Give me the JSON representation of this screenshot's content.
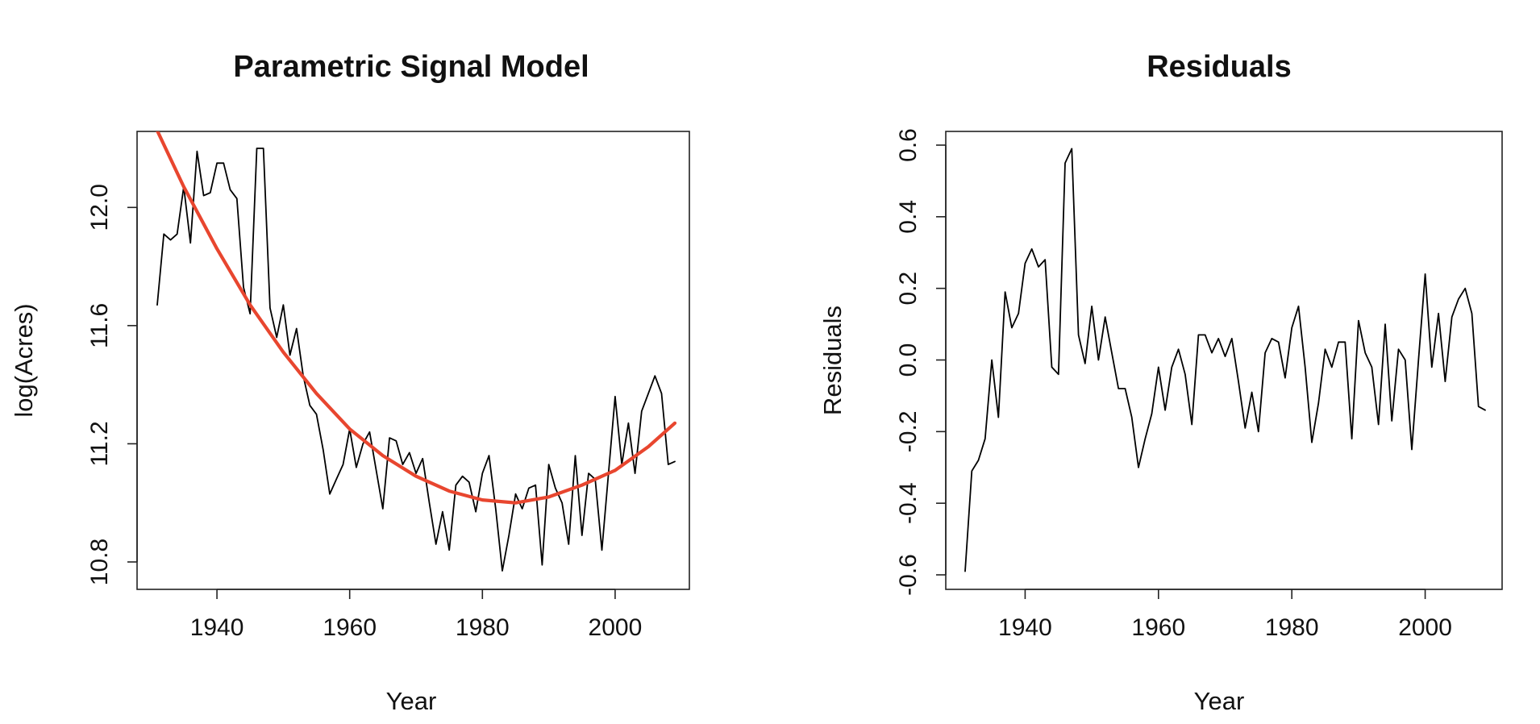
{
  "chart_data": [
    {
      "type": "line",
      "title": "Parametric Signal Model",
      "xlabel": "Year",
      "ylabel": "log(Acres)",
      "xlim": [
        1931,
        2009
      ],
      "ylim": [
        10.8,
        12.2
      ],
      "xticks": [
        "1940",
        "1960",
        "1980",
        "2000"
      ],
      "yticks": [
        "10.8",
        "11.2",
        "11.6",
        "12.0"
      ],
      "grid": false,
      "series": [
        {
          "role": "observed",
          "color": "#000000",
          "x": [
            1931,
            1932,
            1933,
            1934,
            1935,
            1936,
            1937,
            1938,
            1939,
            1940,
            1941,
            1942,
            1943,
            1944,
            1945,
            1946,
            1947,
            1948,
            1949,
            1950,
            1951,
            1952,
            1953,
            1954,
            1955,
            1956,
            1957,
            1958,
            1959,
            1960,
            1961,
            1962,
            1963,
            1964,
            1965,
            1966,
            1967,
            1968,
            1969,
            1970,
            1971,
            1972,
            1973,
            1974,
            1975,
            1976,
            1977,
            1978,
            1979,
            1980,
            1981,
            1982,
            1983,
            1984,
            1985,
            1986,
            1987,
            1988,
            1989,
            1990,
            1991,
            1992,
            1993,
            1994,
            1995,
            1996,
            1997,
            1998,
            1999,
            2000,
            2001,
            2002,
            2003,
            2004,
            2005,
            2006,
            2007,
            2008,
            2009
          ],
          "y": [
            11.67,
            11.91,
            11.89,
            11.91,
            12.07,
            11.88,
            12.19,
            12.04,
            12.05,
            12.15,
            12.15,
            12.06,
            12.03,
            11.73,
            11.64,
            12.2,
            12.2,
            11.66,
            11.56,
            11.67,
            11.5,
            11.59,
            11.43,
            11.33,
            11.3,
            11.18,
            11.03,
            11.08,
            11.13,
            11.25,
            11.12,
            11.2,
            11.24,
            11.11,
            10.98,
            11.22,
            11.21,
            11.13,
            11.17,
            11.1,
            11.15,
            11.0,
            10.86,
            10.97,
            10.84,
            11.06,
            11.09,
            11.07,
            10.97,
            11.1,
            11.16,
            10.98,
            10.77,
            10.89,
            11.03,
            10.98,
            11.05,
            11.06,
            10.79,
            11.13,
            11.05,
            11.0,
            10.86,
            11.16,
            10.89,
            11.1,
            11.08,
            10.84,
            11.1,
            11.36,
            11.13,
            11.27,
            11.1,
            11.31,
            11.37,
            11.43,
            11.37,
            11.13,
            11.14
          ]
        },
        {
          "role": "fitted",
          "color": "#e8462f",
          "x": [
            1931,
            1935,
            1940,
            1945,
            1950,
            1955,
            1960,
            1965,
            1970,
            1975,
            1980,
            1985,
            1990,
            1995,
            2000,
            2005,
            2009
          ],
          "y": [
            12.26,
            12.07,
            11.86,
            11.67,
            11.51,
            11.37,
            11.25,
            11.16,
            11.09,
            11.04,
            11.01,
            11.0,
            11.02,
            11.06,
            11.11,
            11.19,
            11.27
          ]
        }
      ]
    },
    {
      "type": "line",
      "title": "Residuals",
      "xlabel": "Year",
      "ylabel": "Residuals",
      "xlim": [
        1931,
        2009
      ],
      "ylim": [
        -0.6,
        0.6
      ],
      "xticks": [
        "1940",
        "1960",
        "1980",
        "2000"
      ],
      "yticks": [
        "-0.6",
        "-0.4",
        "-0.2",
        "0.0",
        "0.2",
        "0.4",
        "0.6"
      ],
      "grid": false,
      "series": [
        {
          "color": "#000000",
          "x": [
            1931,
            1932,
            1933,
            1934,
            1935,
            1936,
            1937,
            1938,
            1939,
            1940,
            1941,
            1942,
            1943,
            1944,
            1945,
            1946,
            1947,
            1948,
            1949,
            1950,
            1951,
            1952,
            1953,
            1954,
            1955,
            1956,
            1957,
            1958,
            1959,
            1960,
            1961,
            1962,
            1963,
            1964,
            1965,
            1966,
            1967,
            1968,
            1969,
            1970,
            1971,
            1972,
            1973,
            1974,
            1975,
            1976,
            1977,
            1978,
            1979,
            1980,
            1981,
            1982,
            1983,
            1984,
            1985,
            1986,
            1987,
            1988,
            1989,
            1990,
            1991,
            1992,
            1993,
            1994,
            1995,
            1996,
            1997,
            1998,
            1999,
            2000,
            2001,
            2002,
            2003,
            2004,
            2005,
            2006,
            2007,
            2008,
            2009
          ],
          "y": [
            -0.59,
            -0.31,
            -0.28,
            -0.22,
            0.0,
            -0.16,
            0.19,
            0.09,
            0.13,
            0.27,
            0.31,
            0.26,
            0.28,
            -0.02,
            -0.04,
            0.55,
            0.59,
            0.07,
            -0.01,
            0.15,
            0.0,
            0.12,
            0.02,
            -0.08,
            -0.08,
            -0.16,
            -0.3,
            -0.22,
            -0.15,
            -0.02,
            -0.14,
            -0.02,
            0.03,
            -0.04,
            -0.18,
            0.07,
            0.07,
            0.02,
            0.06,
            0.01,
            0.06,
            -0.06,
            -0.19,
            -0.09,
            -0.2,
            0.02,
            0.06,
            0.05,
            -0.05,
            0.09,
            0.15,
            -0.02,
            -0.23,
            -0.12,
            0.03,
            -0.02,
            0.05,
            0.05,
            -0.22,
            0.11,
            0.02,
            -0.02,
            -0.18,
            0.1,
            -0.17,
            0.03,
            0.0,
            -0.25,
            0.0,
            0.24,
            -0.02,
            0.13,
            -0.06,
            0.12,
            0.17,
            0.2,
            0.13,
            -0.13,
            -0.14
          ]
        }
      ]
    }
  ]
}
